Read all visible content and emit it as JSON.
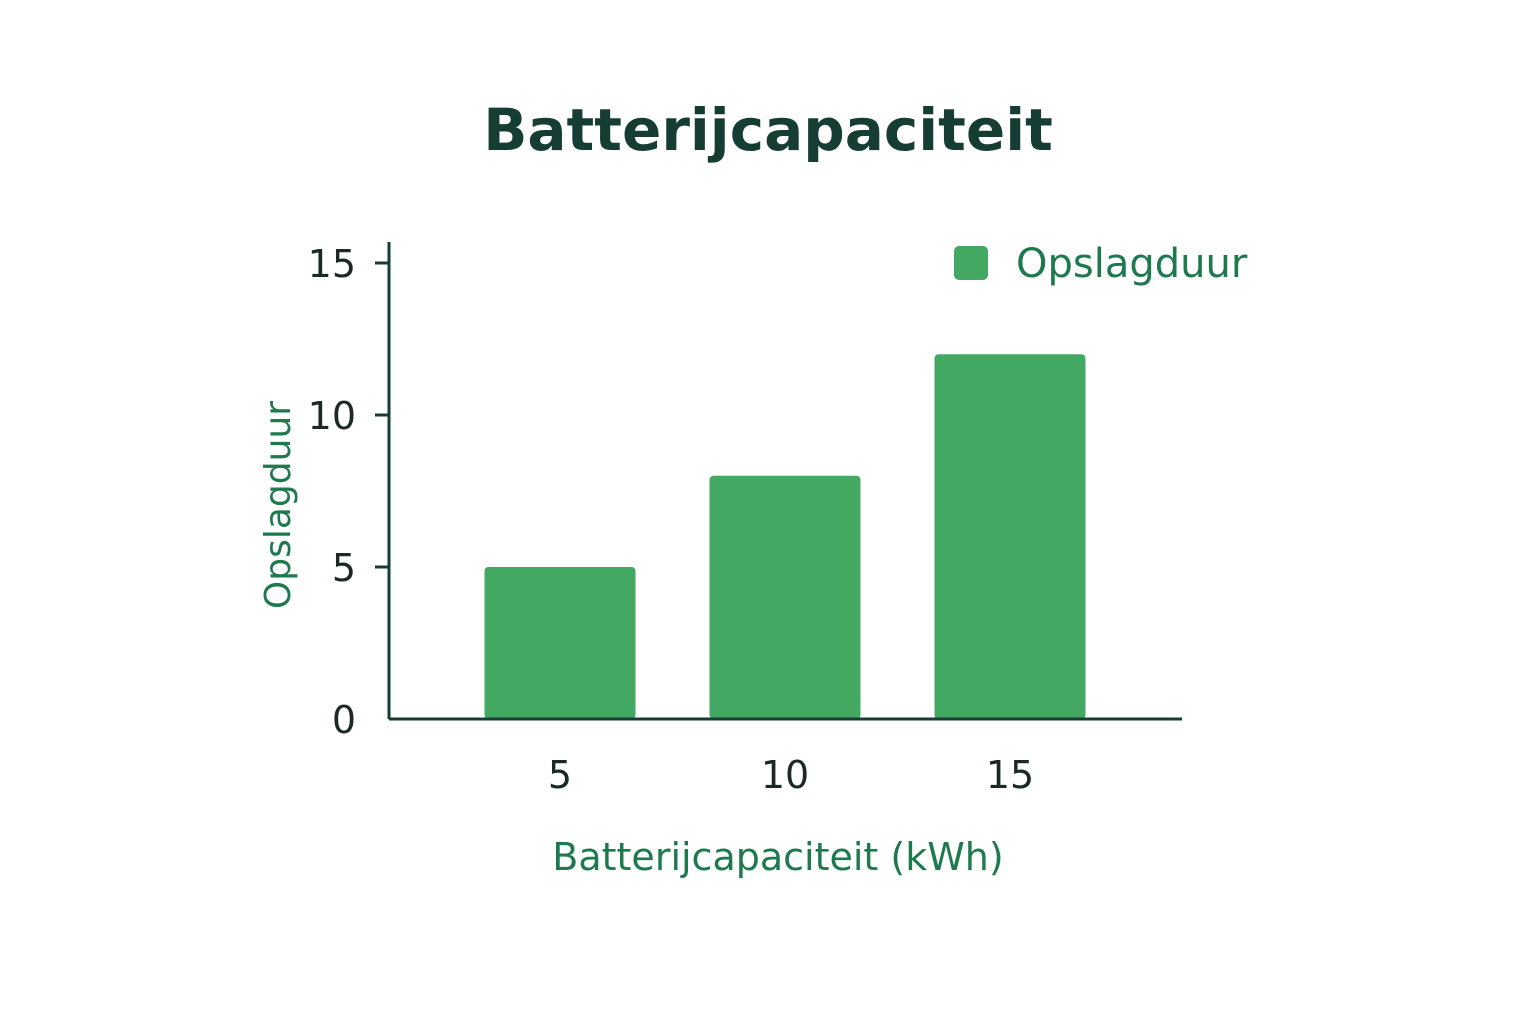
{
  "colors": {
    "bar": "#42a862",
    "title": "#163d33",
    "axis": "#163d33",
    "tick_text": "#1c2a26",
    "label_text": "#1e7a4e"
  },
  "chart_data": {
    "type": "bar",
    "title": "Batterijcapaciteit",
    "xlabel": "Batterijcapaciteit (kWh)",
    "ylabel": "Opslagduur",
    "categories": [
      "5",
      "10",
      "15"
    ],
    "series": [
      {
        "name": "Opslagduur",
        "values": [
          5,
          8,
          12
        ]
      }
    ],
    "ylim": [
      0,
      15
    ],
    "yticks": [
      0,
      5,
      10,
      15
    ],
    "grid": false,
    "legend_position": "top-right"
  }
}
